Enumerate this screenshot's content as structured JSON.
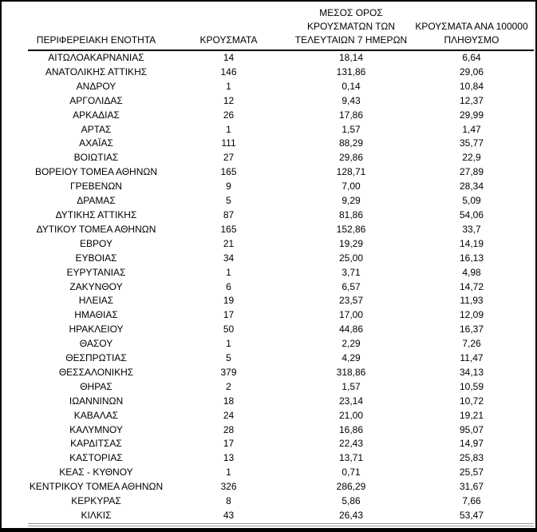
{
  "colors": {
    "background": "#ffffff",
    "frame_border": "#000000",
    "header_rule": "#000000",
    "bottom_double_rule": "#999999",
    "text": "#000000"
  },
  "table": {
    "columns": [
      {
        "id": "region",
        "label": "ΠΕΡΙΦΕΡΕΙΑΚΗ ΕΝΟΤΗΤΑ"
      },
      {
        "id": "cases",
        "label": "ΚΡΟΥΣΜΑΤΑ"
      },
      {
        "id": "avg7",
        "label": "ΜΕΣΟΣ ΟΡΟΣ\nΚΡΟΥΣΜΑΤΩΝ ΤΩΝ\nΤΕΛΕΥΤΑΙΩΝ 7 ΗΜΕΡΩΝ"
      },
      {
        "id": "per100k",
        "label": "ΚΡΟΥΣΜΑΤΑ ΑΝΑ 100000\nΠΛΗΘΥΣΜΟ"
      }
    ],
    "rows": [
      [
        "ΑΙΤΩΛΟΑΚΑΡΝΑΝΙΑΣ",
        "14",
        "18,14",
        "6,64"
      ],
      [
        "ΑΝΑΤΟΛΙΚΗΣ ΑΤΤΙΚΗΣ",
        "146",
        "131,86",
        "29,06"
      ],
      [
        "ΑΝΔΡΟΥ",
        "1",
        "0,14",
        "10,84"
      ],
      [
        "ΑΡΓΟΛΙΔΑΣ",
        "12",
        "9,43",
        "12,37"
      ],
      [
        "ΑΡΚΑΔΙΑΣ",
        "26",
        "17,86",
        "29,99"
      ],
      [
        "ΑΡΤΑΣ",
        "1",
        "1,57",
        "1,47"
      ],
      [
        "ΑΧΑΪΑΣ",
        "111",
        "88,29",
        "35,77"
      ],
      [
        "ΒΟΙΩΤΙΑΣ",
        "27",
        "29,86",
        "22,9"
      ],
      [
        "ΒΟΡΕΙΟΥ ΤΟΜΕΑ ΑΘΗΝΩΝ",
        "165",
        "128,71",
        "27,89"
      ],
      [
        "ΓΡΕΒΕΝΩΝ",
        "9",
        "7,00",
        "28,34"
      ],
      [
        "ΔΡΑΜΑΣ",
        "5",
        "9,29",
        "5,09"
      ],
      [
        "ΔΥΤΙΚΗΣ ΑΤΤΙΚΗΣ",
        "87",
        "81,86",
        "54,06"
      ],
      [
        "ΔΥΤΙΚΟΥ ΤΟΜΕΑ ΑΘΗΝΩΝ",
        "165",
        "152,86",
        "33,7"
      ],
      [
        "ΕΒΡΟΥ",
        "21",
        "19,29",
        "14,19"
      ],
      [
        "ΕΥΒΟΙΑΣ",
        "34",
        "25,00",
        "16,13"
      ],
      [
        "ΕΥΡΥΤΑΝΙΑΣ",
        "1",
        "3,71",
        "4,98"
      ],
      [
        "ΖΑΚΥΝΘΟΥ",
        "6",
        "6,57",
        "14,72"
      ],
      [
        "ΗΛΕΙΑΣ",
        "19",
        "23,57",
        "11,93"
      ],
      [
        "ΗΜΑΘΙΑΣ",
        "17",
        "17,00",
        "12,09"
      ],
      [
        "ΗΡΑΚΛΕΙΟΥ",
        "50",
        "44,86",
        "16,37"
      ],
      [
        "ΘΑΣΟΥ",
        "1",
        "2,29",
        "7,26"
      ],
      [
        "ΘΕΣΠΡΩΤΙΑΣ",
        "5",
        "4,29",
        "11,47"
      ],
      [
        "ΘΕΣΣΑΛΟΝΙΚΗΣ",
        "379",
        "318,86",
        "34,13"
      ],
      [
        "ΘΗΡΑΣ",
        "2",
        "1,57",
        "10,59"
      ],
      [
        "ΙΩΑΝΝΙΝΩΝ",
        "18",
        "23,14",
        "10,72"
      ],
      [
        "ΚΑΒΑΛΑΣ",
        "24",
        "21,00",
        "19,21"
      ],
      [
        "ΚΑΛΥΜΝΟΥ",
        "28",
        "16,86",
        "95,07"
      ],
      [
        "ΚΑΡΔΙΤΣΑΣ",
        "17",
        "22,43",
        "14,97"
      ],
      [
        "ΚΑΣΤΟΡΙΑΣ",
        "13",
        "13,71",
        "25,83"
      ],
      [
        "ΚΕΑΣ - ΚΥΘΝΟΥ",
        "1",
        "0,71",
        "25,57"
      ],
      [
        "ΚΕΝΤΡΙΚΟΥ ΤΟΜΕΑ ΑΘΗΝΩΝ",
        "326",
        "286,29",
        "31,67"
      ],
      [
        "ΚΕΡΚΥΡΑΣ",
        "8",
        "5,86",
        "7,66"
      ],
      [
        "ΚΙΛΚΙΣ",
        "43",
        "26,43",
        "53,47"
      ]
    ]
  }
}
